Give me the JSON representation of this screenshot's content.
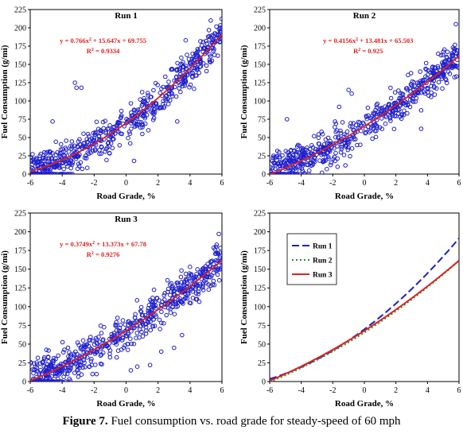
{
  "caption": {
    "label": "Figure 7.",
    "text": " Fuel consumption vs. road grade for steady-speed of 60 mph"
  },
  "colors": {
    "points": "#1f1fcc",
    "fit": "#e02020",
    "text_red": "#e02020",
    "run1": "#1f1fcc",
    "run2": "#2e8b2e",
    "run3": "#e02020"
  },
  "chart_data": [
    {
      "type": "scatter",
      "title": "Run 1",
      "xlabel": "Road Grade, %",
      "ylabel": "Fuel Consumption (g/mi)",
      "xlim": [
        -6,
        6
      ],
      "ylim": [
        0,
        225
      ],
      "xticks": [
        -6,
        -4,
        -2,
        0,
        2,
        4,
        6
      ],
      "yticks": [
        0,
        25,
        50,
        75,
        100,
        125,
        150,
        175,
        200,
        225
      ],
      "equation": "y = 0.766x² + 15.647x + 69.755",
      "r2": "R² = 0.9334",
      "fit": {
        "a": 0.766,
        "b": 15.647,
        "c": 69.755
      },
      "sample": {
        "scatter": 12,
        "seed": 11,
        "outliers": [
          [
            -3.2,
            125
          ],
          [
            -3.1,
            118
          ],
          [
            -2.8,
            118
          ],
          [
            0.5,
            18
          ],
          [
            3.2,
            72
          ],
          [
            -4.6,
            72
          ],
          [
            5.3,
            210
          ]
        ]
      }
    },
    {
      "type": "scatter",
      "title": "Run 2",
      "xlabel": "Road Grade, %",
      "ylabel": "Fuel Consumption (g/mi)",
      "xlim": [
        -6,
        6
      ],
      "ylim": [
        0,
        225
      ],
      "xticks": [
        -6,
        -4,
        -2,
        0,
        2,
        4,
        6
      ],
      "yticks": [
        0,
        25,
        50,
        75,
        100,
        125,
        150,
        175,
        200,
        225
      ],
      "equation": "y = 0.4156x² + 13.481x + 65.503",
      "r2": "R² = 0.925",
      "fit": {
        "a": 0.4156,
        "b": 13.481,
        "c": 65.503
      },
      "sample": {
        "scatter": 12,
        "seed": 23,
        "outliers": [
          [
            -1.6,
            92
          ],
          [
            -1.0,
            115
          ],
          [
            -0.8,
            110
          ],
          [
            -1.7,
            10
          ],
          [
            -1.2,
            12
          ],
          [
            3.6,
            62
          ],
          [
            -4.9,
            75
          ],
          [
            5.8,
            205
          ]
        ]
      }
    },
    {
      "type": "scatter",
      "title": "Run 3",
      "xlabel": "Road Grade, %",
      "ylabel": "Fuel Consumption (g/mi)",
      "xlim": [
        -6,
        6
      ],
      "ylim": [
        0,
        225
      ],
      "xticks": [
        -6,
        -4,
        -2,
        0,
        2,
        4,
        6
      ],
      "yticks": [
        0,
        25,
        50,
        75,
        100,
        125,
        150,
        175,
        200,
        225
      ],
      "equation": "y = 0.3749x² + 13.373x + 67.78",
      "r2": "R² = 0.9276",
      "fit": {
        "a": 0.3749,
        "b": 13.373,
        "c": 67.78
      },
      "sample": {
        "scatter": 13,
        "seed": 37,
        "outliers": [
          [
            -2.1,
            10
          ],
          [
            0.3,
            15
          ],
          [
            0.7,
            20
          ],
          [
            2.2,
            40
          ],
          [
            3.0,
            45
          ],
          [
            3.5,
            62
          ],
          [
            1.5,
            22
          ],
          [
            5.8,
            197
          ]
        ]
      }
    },
    {
      "type": "line",
      "title": "",
      "xlabel": "Road Grade, %",
      "ylabel": "Fuel Consumption (g/mi)",
      "xlim": [
        -6,
        6
      ],
      "ylim": [
        0,
        225
      ],
      "xticks": [
        -6,
        -4,
        -2,
        0,
        2,
        4,
        6
      ],
      "yticks": [
        0,
        25,
        50,
        75,
        100,
        125,
        150,
        175,
        200,
        225
      ],
      "legend_position": "upper-left",
      "series": [
        {
          "name": "Run 1",
          "a": 0.766,
          "b": 15.647,
          "c": 69.755,
          "style": "dash"
        },
        {
          "name": "Run 2",
          "a": 0.4156,
          "b": 13.481,
          "c": 65.503,
          "style": "dot"
        },
        {
          "name": "Run 3",
          "a": 0.3749,
          "b": 13.373,
          "c": 67.78,
          "style": "solid"
        }
      ]
    }
  ]
}
